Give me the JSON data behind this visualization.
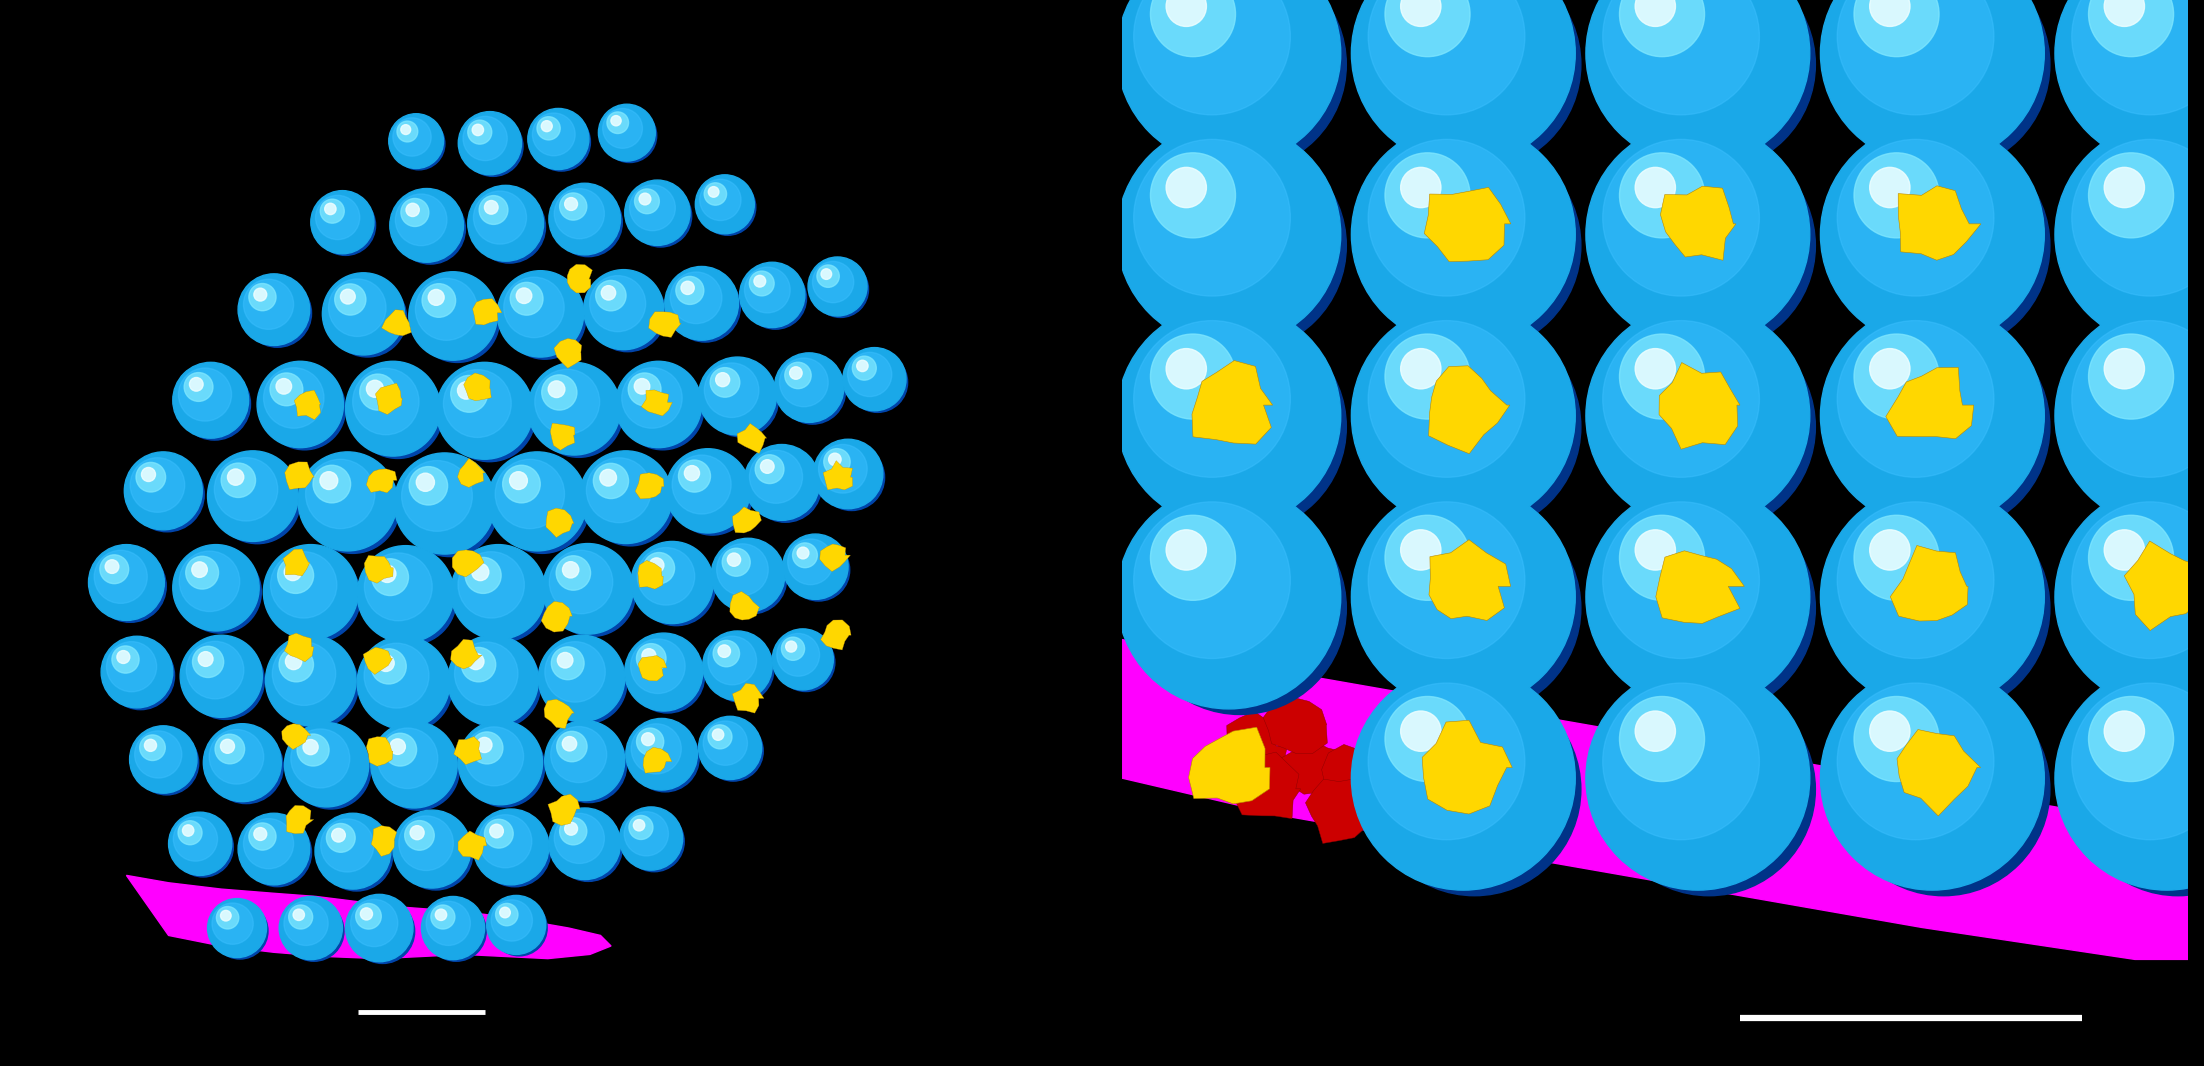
{
  "figure_width": 22.04,
  "figure_height": 10.66,
  "background_color": "#000000",
  "left_panel": {
    "bg_color": "#000000",
    "vesicle_color_base": "#1AA8E8",
    "vesicle_color_highlight": "#80E8FF",
    "vesicle_color_dark": "#0044AA",
    "membrane_color": "#FF00FF",
    "connector_color": "#FFD700",
    "scale_bar_color": "#FFFFFF"
  },
  "right_panel": {
    "bg_color": "#00CCEE",
    "vesicle_color_base": "#1AA8E8",
    "vesicle_color_highlight": "#80E8FF",
    "vesicle_color_dark": "#003388",
    "membrane_color": "#FF00FF",
    "connector_color": "#FFD700",
    "tether_color": "#CC0000",
    "scale_bar_color": "#FFFFFF"
  }
}
